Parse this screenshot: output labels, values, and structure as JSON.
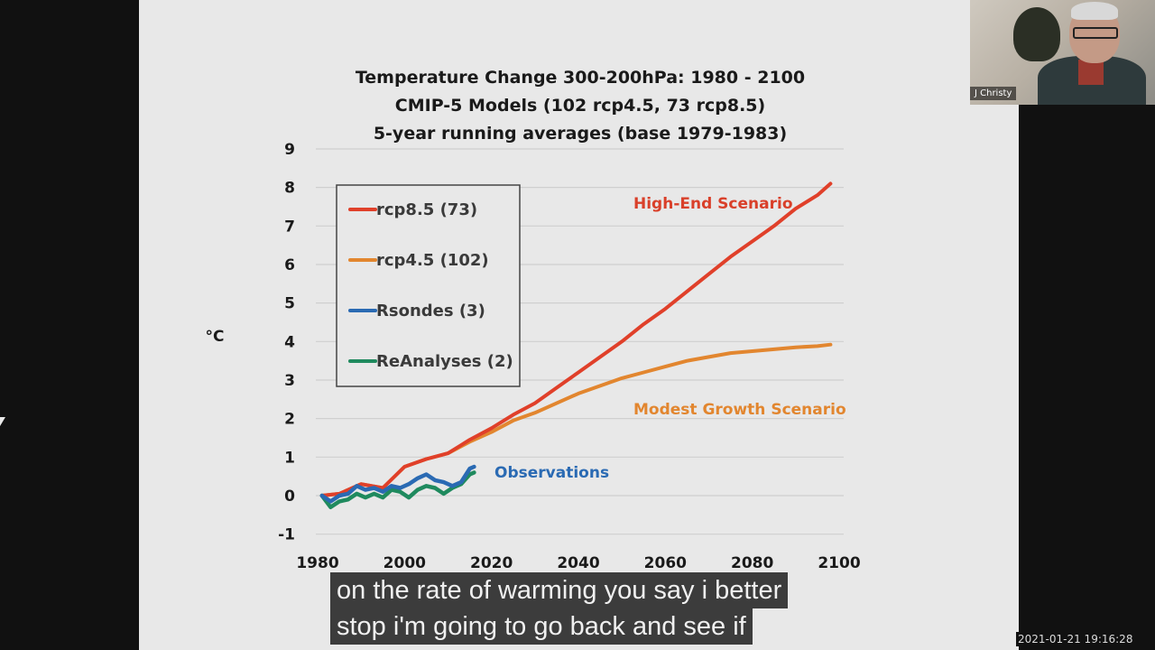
{
  "video_call": {
    "participant_name": "J Christy",
    "timestamp": "2021-01-21 19:16:28",
    "caption_lines": [
      "on the rate of warming you say i better",
      "stop i'm going to go back and see if"
    ]
  },
  "chart_data": {
    "type": "line",
    "title": "Temperature Change 300-200hPa: 1980 - 2100",
    "subtitle_lines": [
      "CMIP-5 Models (102 rcp4.5, 73 rcp8.5)",
      "5-year running averages (base 1979-1983)"
    ],
    "xlabel": "",
    "ylabel": "°C",
    "xlim": [
      1980,
      2100
    ],
    "ylim": [
      -1,
      9
    ],
    "x_ticks": [
      1980,
      2000,
      2020,
      2040,
      2060,
      2080,
      2100
    ],
    "x_tick_labels": [
      "1980",
      "2000",
      "2020",
      "2040",
      "2060",
      "2080",
      "2100"
    ],
    "y_ticks": [
      -1,
      0,
      1,
      2,
      3,
      4,
      5,
      6,
      7,
      8,
      9
    ],
    "y_tick_labels": [
      "-1",
      "0",
      "1",
      "2",
      "3",
      "4",
      "5",
      "6",
      "7",
      "8",
      "9"
    ],
    "grid": "horizontal",
    "legend_position": "top-left",
    "series": [
      {
        "name": "rcp8.5 (73)",
        "color": "#e0402a",
        "x": [
          1981,
          1985,
          1990,
          1995,
          2000,
          2005,
          2010,
          2015,
          2020,
          2025,
          2030,
          2035,
          2040,
          2045,
          2050,
          2055,
          2060,
          2065,
          2070,
          2075,
          2080,
          2085,
          2090,
          2095,
          2098
        ],
        "values": [
          0.0,
          0.05,
          0.3,
          0.2,
          0.75,
          0.95,
          1.1,
          1.45,
          1.75,
          2.1,
          2.4,
          2.8,
          3.2,
          3.6,
          4.0,
          4.45,
          4.85,
          5.3,
          5.75,
          6.2,
          6.6,
          7.0,
          7.45,
          7.8,
          8.1
        ]
      },
      {
        "name": "rcp4.5 (102)",
        "color": "#e2862f",
        "x": [
          1981,
          1985,
          1990,
          1995,
          2000,
          2005,
          2010,
          2015,
          2020,
          2025,
          2030,
          2035,
          2040,
          2045,
          2050,
          2055,
          2060,
          2065,
          2070,
          2075,
          2080,
          2085,
          2090,
          2095,
          2098
        ],
        "values": [
          0.0,
          0.05,
          0.3,
          0.2,
          0.75,
          0.95,
          1.1,
          1.4,
          1.65,
          1.95,
          2.15,
          2.4,
          2.65,
          2.85,
          3.05,
          3.2,
          3.35,
          3.5,
          3.6,
          3.7,
          3.75,
          3.8,
          3.85,
          3.88,
          3.92
        ]
      },
      {
        "name": "Rsondes (3)",
        "color": "#2a6ab3",
        "x": [
          1981,
          1983,
          1985,
          1987,
          1989,
          1991,
          1993,
          1995,
          1997,
          1999,
          2001,
          2003,
          2005,
          2007,
          2009,
          2011,
          2013,
          2015,
          2016
        ],
        "values": [
          0.0,
          -0.15,
          0.0,
          0.05,
          0.25,
          0.15,
          0.2,
          0.1,
          0.25,
          0.2,
          0.3,
          0.45,
          0.55,
          0.4,
          0.35,
          0.25,
          0.35,
          0.7,
          0.75
        ]
      },
      {
        "name": "ReAnalyses (2)",
        "color": "#1f8a5e",
        "x": [
          1981,
          1983,
          1985,
          1987,
          1989,
          1991,
          1993,
          1995,
          1997,
          1999,
          2001,
          2003,
          2005,
          2007,
          2009,
          2011,
          2013,
          2015,
          2016
        ],
        "values": [
          0.0,
          -0.3,
          -0.15,
          -0.1,
          0.05,
          -0.05,
          0.05,
          -0.05,
          0.15,
          0.1,
          -0.05,
          0.15,
          0.25,
          0.2,
          0.05,
          0.2,
          0.3,
          0.55,
          0.6
        ]
      }
    ],
    "annotations": [
      {
        "text": "High-End Scenario",
        "color": "#d9402a",
        "series": "rcp8.5 (73)"
      },
      {
        "text": "Modest Growth Scenario",
        "color": "#e2862f",
        "series": "rcp4.5 (102)"
      },
      {
        "text": "Observations",
        "color": "#2a6ab3",
        "series": "Rsondes (3)"
      }
    ]
  }
}
